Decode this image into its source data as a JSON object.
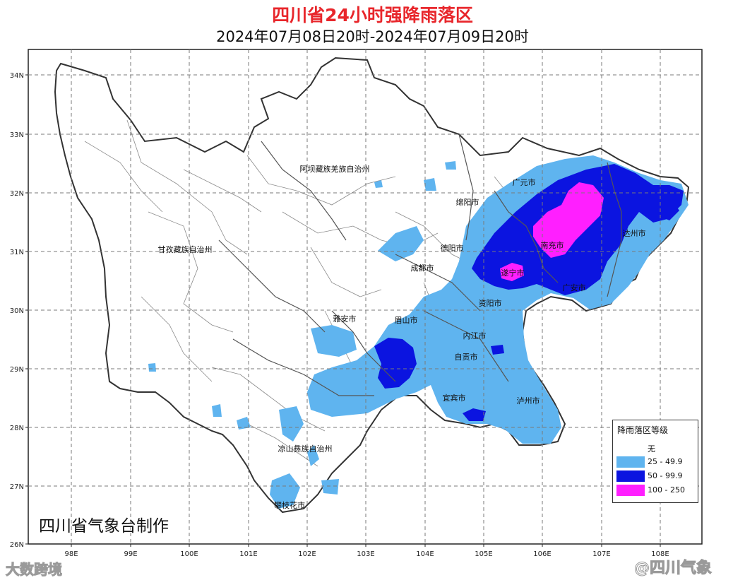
{
  "header": {
    "title": "四川省24小时强降雨落区",
    "subtitle": "2024年07月08日20时-2024年07月09日20时"
  },
  "map": {
    "lat_ticks": [
      "34N",
      "33N",
      "32N",
      "31N",
      "30N",
      "29N",
      "28N",
      "27N",
      "26N"
    ],
    "lon_ticks": [
      "98E",
      "99E",
      "100E",
      "101E",
      "102E",
      "103E",
      "104E",
      "105E",
      "106E",
      "107E",
      "108E"
    ],
    "colors": {
      "border_fill": "#ffffff",
      "province_outline": "#333333",
      "county_lines": "#8a8a8a",
      "grid": "#7a7a7a",
      "level_25": "#5fb4ef",
      "level_50": "#0b14e0",
      "level_100": "#ff1fff"
    },
    "regions": [
      {
        "name": "阿坝藏族羌族自治州"
      },
      {
        "name": "甘孜藏族自治州"
      },
      {
        "name": "凉山彝族自治州"
      },
      {
        "name": "攀枝花市"
      },
      {
        "name": "雅安市"
      },
      {
        "name": "眉山市"
      },
      {
        "name": "成都市"
      },
      {
        "name": "德阳市"
      },
      {
        "name": "绵阳市"
      },
      {
        "name": "广元市"
      },
      {
        "name": "南充市"
      },
      {
        "name": "达州市"
      },
      {
        "name": "遂宁市"
      },
      {
        "name": "广安市"
      },
      {
        "name": "资阳市"
      },
      {
        "name": "内江市"
      },
      {
        "name": "自贡市"
      },
      {
        "name": "宜宾市"
      },
      {
        "name": "泸州市"
      }
    ]
  },
  "legend": {
    "title": "降雨落区等级",
    "items": [
      {
        "label": "无",
        "color": "#ffffff"
      },
      {
        "label": "25 - 49.9",
        "color": "#5fb4ef"
      },
      {
        "label": "50 - 99.9",
        "color": "#0b14e0"
      },
      {
        "label": "100 - 250",
        "color": "#ff1fff"
      }
    ]
  },
  "credit": "四川省气象台制作",
  "watermarks": {
    "left": "大数跨境",
    "right": "@四川气象"
  }
}
